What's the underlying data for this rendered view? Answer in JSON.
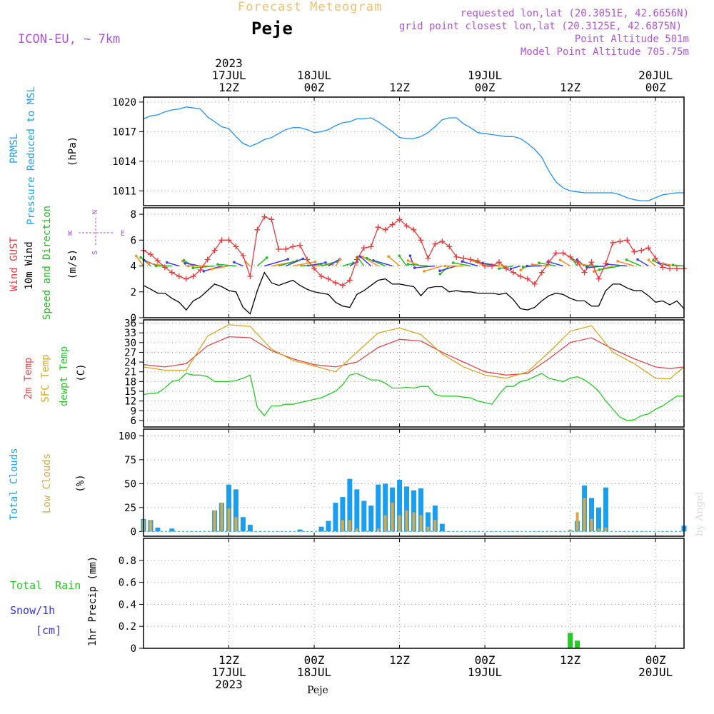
{
  "header": {
    "model": "ICON-EU, ~ 7km",
    "title": "Forecast Meteogram",
    "location": "Peje",
    "requested": "requested lon,lat (20.3051E, 42.6656N)",
    "gridpoint": "grid point closest lon,lat (20.3125E, 42.6875N)",
    "point_alt": "Point Altitude 501m",
    "model_alt": "Model Point Altitude 705.75m",
    "watermark": "by Angel",
    "footer_location": "Peje"
  },
  "colors": {
    "pressure": "#1e90ff",
    "gust": "#e8383a",
    "wind": "#000000",
    "windarrow": "#22bb22",
    "temp": "#e0474c",
    "sfc": "#daa520",
    "dewpt": "#22cc22",
    "clouds": "#1a9ff0",
    "lowclouds": "#d4a94a",
    "rain": "#22cc22",
    "snow": "#3333ee",
    "header_purple": "#b054d8",
    "title_gold": "#f0c070"
  },
  "axes": {
    "top_ticks": [
      {
        "hour": 12,
        "lines": [
          "2023",
          "17JUL",
          "12Z"
        ]
      },
      {
        "hour": 24,
        "lines": [
          "18JUL",
          "00Z"
        ]
      },
      {
        "hour": 36,
        "lines": [
          "12Z"
        ]
      },
      {
        "hour": 48,
        "lines": [
          "19JUL",
          "00Z"
        ]
      },
      {
        "hour": 60,
        "lines": [
          "12Z"
        ]
      },
      {
        "hour": 72,
        "lines": [
          "20JUL",
          "00Z"
        ]
      }
    ],
    "bottom_ticks": [
      {
        "hour": 12,
        "lines": [
          "12Z",
          "17JUL",
          "2023"
        ]
      },
      {
        "hour": 24,
        "lines": [
          "00Z",
          "18JUL"
        ]
      },
      {
        "hour": 36,
        "lines": [
          "12Z"
        ]
      },
      {
        "hour": 48,
        "lines": [
          "00Z",
          "19JUL"
        ]
      },
      {
        "hour": 60,
        "lines": [
          "12Z"
        ]
      },
      {
        "hour": 72,
        "lines": [
          "00Z",
          "20JUL"
        ]
      }
    ]
  },
  "chart_data": [
    {
      "type": "line",
      "panel": "pressure",
      "labels": [
        "PRMSL",
        "Pressure Reduced to MSL",
        "(hPa)"
      ],
      "ylim": [
        1009.5,
        1020.5
      ],
      "yticks": [
        1011,
        1014,
        1017,
        1020
      ],
      "xlim": [
        0,
        76
      ],
      "series": [
        {
          "name": "PRMSL",
          "x": [
            0,
            1,
            2,
            3,
            4,
            5,
            6,
            7,
            8,
            9,
            10,
            11,
            12,
            13,
            14,
            15,
            16,
            17,
            18,
            19,
            20,
            21,
            22,
            23,
            24,
            25,
            26,
            27,
            28,
            29,
            30,
            31,
            32,
            33,
            34,
            35,
            36,
            37,
            38,
            39,
            40,
            41,
            42,
            43,
            44,
            45,
            46,
            47,
            48,
            49,
            50,
            51,
            52,
            53,
            54,
            55,
            56,
            57,
            58,
            59,
            60,
            61,
            62,
            63,
            64,
            65,
            66,
            67,
            68,
            69,
            70,
            71,
            72,
            73,
            74,
            75,
            76
          ],
          "values": [
            1018.3,
            1018.6,
            1018.7,
            1019.0,
            1019.2,
            1019.3,
            1019.5,
            1019.4,
            1019.3,
            1018.5,
            1018.0,
            1017.5,
            1017.3,
            1016.5,
            1015.8,
            1015.5,
            1015.8,
            1016.2,
            1016.4,
            1016.8,
            1017.2,
            1017.4,
            1017.4,
            1017.2,
            1016.9,
            1017.0,
            1017.2,
            1017.6,
            1017.9,
            1018.0,
            1018.3,
            1018.3,
            1018.4,
            1018.0,
            1017.5,
            1017.0,
            1016.4,
            1016.3,
            1016.3,
            1016.5,
            1016.9,
            1017.5,
            1018.2,
            1018.4,
            1018.4,
            1017.8,
            1017.4,
            1016.9,
            1016.8,
            1016.7,
            1016.6,
            1016.5,
            1016.5,
            1016.3,
            1015.8,
            1015.2,
            1014.4,
            1013.0,
            1011.9,
            1011.3,
            1011.0,
            1010.9,
            1010.8,
            1010.8,
            1010.8,
            1010.8,
            1010.8,
            1010.6,
            1010.3,
            1010.1,
            1010.0,
            1010.0,
            1010.3,
            1010.6,
            1010.7,
            1010.8,
            1010.8
          ]
        }
      ]
    },
    {
      "type": "line",
      "panel": "wind",
      "labels": [
        "Wind GUST",
        "10m Wind",
        "Speed and Direction",
        "(m/s)"
      ],
      "compass": {
        "n": "N",
        "s": "S",
        "w": "W",
        "e": "E"
      },
      "ylim": [
        0,
        8.5
      ],
      "yticks": [
        0,
        2,
        4,
        6,
        8
      ],
      "xlim": [
        0,
        76
      ],
      "series": [
        {
          "name": "Wind GUST",
          "x": [
            0,
            1,
            2,
            3,
            4,
            5,
            6,
            7,
            8,
            9,
            10,
            11,
            12,
            13,
            14,
            15,
            16,
            17,
            18,
            19,
            20,
            21,
            22,
            23,
            24,
            25,
            26,
            27,
            28,
            29,
            30,
            31,
            32,
            33,
            34,
            35,
            36,
            37,
            38,
            39,
            40,
            41,
            42,
            43,
            44,
            45,
            46,
            47,
            48,
            49,
            50,
            51,
            52,
            53,
            54,
            55,
            56,
            57,
            58,
            59,
            60,
            61,
            62,
            63,
            64,
            65,
            66,
            67,
            68,
            69,
            70,
            71,
            72,
            73,
            74,
            75,
            76
          ],
          "values": [
            5.2,
            4.9,
            4.4,
            3.9,
            3.5,
            3.2,
            3.0,
            3.2,
            3.7,
            4.5,
            5.2,
            6.0,
            6.0,
            5.5,
            4.8,
            3.2,
            6.8,
            7.8,
            7.6,
            5.3,
            5.3,
            5.5,
            5.6,
            4.5,
            3.8,
            3.2,
            3.0,
            2.7,
            2.5,
            2.9,
            4.5,
            5.4,
            5.5,
            7.0,
            6.8,
            7.2,
            7.6,
            7.1,
            6.8,
            6.0,
            4.6,
            5.7,
            5.9,
            5.5,
            4.7,
            4.6,
            4.5,
            4.4,
            4.0,
            4.0,
            4.3,
            3.8,
            3.5,
            3.2,
            3.0,
            2.6,
            3.5,
            4.3,
            5.0,
            5.0,
            4.7,
            4.3,
            3.5,
            4.3,
            3.0,
            4.2,
            5.8,
            5.9,
            6.0,
            5.1,
            5.2,
            5.4,
            4.6,
            3.9,
            3.8,
            3.8,
            3.8
          ]
        },
        {
          "name": "10m Wind",
          "x": [
            0,
            1,
            2,
            3,
            4,
            5,
            6,
            7,
            8,
            9,
            10,
            11,
            12,
            13,
            14,
            15,
            16,
            17,
            18,
            19,
            20,
            21,
            22,
            23,
            24,
            25,
            26,
            27,
            28,
            29,
            30,
            31,
            32,
            33,
            34,
            35,
            36,
            37,
            38,
            39,
            40,
            41,
            42,
            43,
            44,
            45,
            46,
            47,
            48,
            49,
            50,
            51,
            52,
            53,
            54,
            55,
            56,
            57,
            58,
            59,
            60,
            61,
            62,
            63,
            64,
            65,
            66,
            67,
            68,
            69,
            70,
            71,
            72,
            73,
            74,
            75,
            76
          ],
          "values": [
            2.5,
            2.2,
            1.9,
            1.9,
            1.5,
            1.2,
            0.6,
            1.3,
            1.6,
            2.1,
            2.6,
            2.4,
            2.1,
            2.0,
            0.8,
            0.3,
            2.1,
            3.5,
            2.7,
            2.5,
            2.7,
            2.9,
            2.5,
            2.2,
            2.0,
            1.9,
            1.8,
            1.2,
            0.9,
            0.8,
            1.8,
            2.1,
            2.5,
            2.9,
            3.0,
            2.6,
            2.6,
            2.5,
            2.4,
            1.7,
            2.3,
            2.4,
            2.4,
            2.0,
            2.1,
            2.0,
            2.0,
            1.9,
            1.9,
            1.9,
            1.8,
            1.9,
            1.4,
            0.7,
            0.6,
            0.8,
            1.3,
            1.7,
            1.9,
            1.8,
            1.5,
            1.3,
            1.3,
            0.9,
            0.9,
            2.1,
            2.6,
            2.6,
            2.3,
            2.1,
            2.1,
            1.7,
            1.2,
            1.3,
            1.0,
            1.3,
            0.7
          ]
        }
      ]
    },
    {
      "type": "line",
      "panel": "temperature",
      "labels": [
        "2m Temp",
        "SFC Temp",
        "dewpt Temp",
        "(C)"
      ],
      "ylim": [
        4,
        37
      ],
      "yticks": [
        6,
        9,
        12,
        15,
        18,
        21,
        24,
        27,
        30,
        33,
        36
      ],
      "xlim": [
        0,
        76
      ],
      "series": [
        {
          "name": "2m Temp",
          "x": [
            0,
            3,
            6,
            9,
            12,
            15,
            18,
            21,
            24,
            27,
            30,
            33,
            36,
            39,
            42,
            45,
            48,
            51,
            54,
            57,
            60,
            63,
            66,
            69,
            72,
            74,
            76
          ],
          "values": [
            23.2,
            22.5,
            23.5,
            29.0,
            31.8,
            31.5,
            27.5,
            25.0,
            23.2,
            22.5,
            24.0,
            28.5,
            31.0,
            30.5,
            27.0,
            24.0,
            21.0,
            20.0,
            20.5,
            25.0,
            30.0,
            31.5,
            28.0,
            25.0,
            22.5,
            22.0,
            22.5
          ]
        },
        {
          "name": "SFC Temp",
          "x": [
            0,
            3,
            6,
            9,
            12,
            15,
            18,
            21,
            24,
            27,
            30,
            33,
            36,
            39,
            42,
            45,
            48,
            51,
            54,
            57,
            60,
            63,
            66,
            69,
            72,
            74,
            76
          ],
          "values": [
            22.5,
            21.5,
            21.5,
            32.0,
            35.5,
            35.0,
            28.0,
            24.5,
            22.8,
            21.0,
            27.0,
            33.0,
            34.5,
            32.5,
            26.5,
            22.5,
            20.0,
            19.0,
            21.0,
            27.0,
            33.5,
            35.2,
            27.0,
            23.5,
            19.0,
            18.8,
            22.5
          ]
        },
        {
          "name": "dewpt Temp",
          "x": [
            0,
            1,
            2,
            3,
            4,
            5,
            6,
            7,
            8,
            9,
            10,
            11,
            12,
            13,
            14,
            15,
            16,
            17,
            18,
            19,
            20,
            21,
            22,
            23,
            24,
            25,
            26,
            27,
            28,
            29,
            30,
            31,
            32,
            33,
            34,
            35,
            36,
            37,
            38,
            39,
            40,
            41,
            42,
            43,
            44,
            45,
            46,
            47,
            48,
            49,
            50,
            51,
            52,
            53,
            54,
            55,
            56,
            57,
            58,
            59,
            60,
            61,
            62,
            63,
            64,
            65,
            66,
            67,
            68,
            69,
            70,
            71,
            72,
            73,
            74,
            75,
            76
          ],
          "values": [
            14.0,
            14.3,
            14.5,
            16.0,
            18.0,
            18.5,
            20.5,
            20.0,
            20.0,
            19.5,
            18.0,
            18.0,
            18.0,
            18.3,
            19.0,
            20.0,
            10.0,
            7.5,
            10.5,
            10.5,
            11.0,
            11.0,
            11.5,
            12.0,
            12.5,
            13.0,
            14.0,
            15.0,
            17.0,
            20.0,
            20.5,
            19.5,
            18.5,
            18.5,
            17.5,
            16.0,
            16.0,
            16.2,
            16.0,
            16.5,
            16.5,
            14.0,
            13.5,
            13.5,
            13.5,
            13.2,
            13.0,
            12.0,
            11.5,
            11.0,
            14.0,
            16.5,
            16.5,
            18.0,
            18.5,
            19.5,
            20.5,
            19.0,
            18.5,
            18.0,
            19.0,
            19.5,
            18.5,
            17.0,
            15.0,
            12.0,
            9.5,
            7.0,
            6.0,
            6.2,
            7.5,
            8.0,
            9.5,
            10.5,
            12.0,
            13.5,
            13.5
          ]
        }
      ]
    },
    {
      "type": "bar",
      "panel": "clouds",
      "labels": [
        "Total Clouds",
        "Low Clouds",
        "(%)"
      ],
      "ylim": [
        -5,
        107
      ],
      "yticks": [
        0,
        25,
        50,
        75,
        100
      ],
      "xlim": [
        0,
        76
      ],
      "series": [
        {
          "name": "Total Clouds",
          "x": [
            0,
            1,
            2,
            4,
            10,
            11,
            12,
            13,
            14,
            15,
            22,
            25,
            26,
            27,
            28,
            29,
            30,
            31,
            32,
            33,
            34,
            35,
            36,
            37,
            38,
            39,
            40,
            41,
            42,
            60,
            61,
            62,
            63,
            64,
            65,
            76
          ],
          "values": [
            13,
            12,
            4,
            3,
            22,
            30,
            49,
            44,
            15,
            7,
            2,
            5,
            11,
            30,
            36,
            55,
            44,
            32,
            27,
            49,
            50,
            46,
            54,
            47,
            43,
            45,
            20,
            27,
            8,
            1,
            11,
            48,
            35,
            25,
            46,
            6
          ]
        },
        {
          "name": "Low Clouds",
          "x": [
            0,
            1,
            10,
            11,
            12,
            13,
            28,
            29,
            30,
            33,
            34,
            35,
            36,
            37,
            38,
            39,
            40,
            41,
            60,
            61,
            62,
            63,
            64,
            65
          ],
          "values": [
            12,
            12,
            22,
            30,
            24,
            15,
            12,
            12,
            3,
            3,
            17,
            30,
            17,
            22,
            20,
            17,
            5,
            12,
            2,
            20,
            35,
            13,
            3,
            4
          ]
        }
      ]
    },
    {
      "type": "bar",
      "panel": "precip",
      "labels": [
        "Total  Rain",
        "Snow/1h",
        "[cm]",
        "1hr Precip (mm)"
      ],
      "ylim": [
        0,
        1.0
      ],
      "yticks": [
        0,
        0.2,
        0.4,
        0.6,
        0.8
      ],
      "xlim": [
        0,
        76
      ],
      "series": [
        {
          "name": "Rain",
          "x": [
            60,
            61
          ],
          "values": [
            0.14,
            0.07
          ]
        }
      ]
    }
  ]
}
